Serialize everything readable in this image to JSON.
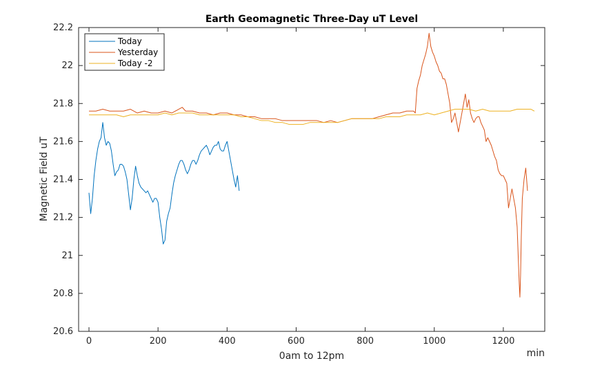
{
  "chart_data": {
    "type": "line",
    "title": "Earth Geomagnetic Three-Day uT Level",
    "xlabel": "0am to 12pm",
    "xunit": "min",
    "ylabel": "Magnetic Field uT",
    "xlim": [
      -30,
      1320
    ],
    "ylim": [
      20.6,
      22.2
    ],
    "xticks": [
      0,
      200,
      400,
      600,
      800,
      1000,
      1200
    ],
    "yticks": [
      20.6,
      20.8,
      21,
      21.2,
      21.4,
      21.6,
      21.8,
      22,
      22.2
    ],
    "grid": false,
    "legend_position": "top-left",
    "series": [
      {
        "name": "Today",
        "color": "#0072BD",
        "x": [
          0,
          5,
          10,
          15,
          20,
          25,
          30,
          35,
          40,
          45,
          50,
          55,
          60,
          65,
          70,
          75,
          80,
          85,
          90,
          95,
          100,
          105,
          110,
          115,
          120,
          125,
          130,
          135,
          140,
          145,
          150,
          155,
          160,
          165,
          170,
          175,
          180,
          185,
          190,
          195,
          200,
          205,
          210,
          215,
          220,
          225,
          230,
          235,
          240,
          245,
          250,
          255,
          260,
          265,
          270,
          275,
          280,
          285,
          290,
          295,
          300,
          305,
          310,
          315,
          320,
          325,
          330,
          335,
          340,
          345,
          350,
          355,
          360,
          365,
          370,
          375,
          380,
          385,
          390,
          395,
          400,
          405,
          410,
          415,
          420,
          425,
          430,
          435
        ],
        "y": [
          21.33,
          21.22,
          21.3,
          21.42,
          21.5,
          21.56,
          21.6,
          21.62,
          21.7,
          21.62,
          21.58,
          21.6,
          21.59,
          21.55,
          21.48,
          21.42,
          21.44,
          21.45,
          21.48,
          21.48,
          21.47,
          21.44,
          21.4,
          21.32,
          21.24,
          21.3,
          21.4,
          21.47,
          21.42,
          21.38,
          21.36,
          21.35,
          21.34,
          21.33,
          21.34,
          21.32,
          21.3,
          21.28,
          21.3,
          21.3,
          21.28,
          21.2,
          21.14,
          21.06,
          21.08,
          21.18,
          21.22,
          21.25,
          21.32,
          21.38,
          21.42,
          21.45,
          21.48,
          21.5,
          21.5,
          21.48,
          21.45,
          21.43,
          21.45,
          21.48,
          21.5,
          21.5,
          21.48,
          21.5,
          21.53,
          21.55,
          21.56,
          21.57,
          21.58,
          21.56,
          21.53,
          21.55,
          21.57,
          21.58,
          21.58,
          21.6,
          21.56,
          21.55,
          21.55,
          21.58,
          21.6,
          21.55,
          21.5,
          21.45,
          21.4,
          21.36,
          21.42,
          21.34
        ]
      },
      {
        "name": "Yesterday",
        "color": "#D95319",
        "x": [
          0,
          20,
          40,
          60,
          80,
          100,
          120,
          140,
          160,
          180,
          200,
          220,
          240,
          260,
          270,
          280,
          300,
          320,
          340,
          360,
          380,
          400,
          420,
          440,
          460,
          480,
          500,
          520,
          540,
          560,
          580,
          600,
          620,
          640,
          660,
          680,
          700,
          720,
          740,
          760,
          780,
          800,
          820,
          840,
          860,
          880,
          900,
          920,
          940,
          945,
          950,
          955,
          960,
          965,
          970,
          975,
          980,
          985,
          990,
          995,
          1000,
          1005,
          1010,
          1015,
          1020,
          1025,
          1030,
          1035,
          1040,
          1045,
          1050,
          1055,
          1060,
          1065,
          1070,
          1075,
          1080,
          1085,
          1090,
          1095,
          1100,
          1105,
          1110,
          1115,
          1120,
          1125,
          1130,
          1135,
          1140,
          1145,
          1150,
          1155,
          1160,
          1165,
          1170,
          1175,
          1180,
          1185,
          1190,
          1195,
          1200,
          1205,
          1210,
          1215,
          1220,
          1225,
          1230,
          1235,
          1240,
          1243,
          1246,
          1248,
          1250,
          1252,
          1255,
          1260,
          1265,
          1270
        ],
        "y": [
          21.76,
          21.76,
          21.77,
          21.76,
          21.76,
          21.76,
          21.77,
          21.75,
          21.76,
          21.75,
          21.75,
          21.76,
          21.75,
          21.77,
          21.78,
          21.76,
          21.76,
          21.75,
          21.75,
          21.74,
          21.75,
          21.75,
          21.74,
          21.74,
          21.73,
          21.73,
          21.72,
          21.72,
          21.72,
          21.71,
          21.71,
          21.71,
          21.71,
          21.71,
          21.71,
          21.7,
          21.71,
          21.7,
          21.71,
          21.72,
          21.72,
          21.72,
          21.72,
          21.73,
          21.74,
          21.75,
          21.75,
          21.76,
          21.76,
          21.75,
          21.88,
          21.92,
          21.95,
          22.0,
          22.03,
          22.06,
          22.1,
          22.17,
          22.1,
          22.07,
          22.05,
          22.02,
          22.0,
          21.97,
          21.96,
          21.93,
          21.93,
          21.9,
          21.85,
          21.8,
          21.7,
          21.72,
          21.75,
          21.7,
          21.65,
          21.7,
          21.75,
          21.8,
          21.85,
          21.78,
          21.82,
          21.75,
          21.72,
          21.7,
          21.72,
          21.73,
          21.73,
          21.7,
          21.68,
          21.66,
          21.6,
          21.62,
          21.6,
          21.58,
          21.55,
          21.52,
          21.5,
          21.45,
          21.43,
          21.42,
          21.42,
          21.4,
          21.38,
          21.25,
          21.3,
          21.35,
          21.3,
          21.25,
          21.15,
          21.0,
          20.85,
          20.78,
          20.9,
          21.1,
          21.3,
          21.4,
          21.46,
          21.34
        ]
      },
      {
        "name": "Today -2",
        "color": "#EDB120",
        "x": [
          0,
          20,
          40,
          60,
          80,
          100,
          120,
          140,
          160,
          180,
          200,
          220,
          240,
          260,
          280,
          300,
          320,
          340,
          360,
          380,
          400,
          420,
          440,
          460,
          480,
          500,
          520,
          540,
          560,
          580,
          600,
          620,
          640,
          660,
          680,
          700,
          720,
          740,
          760,
          780,
          800,
          820,
          840,
          860,
          880,
          900,
          920,
          940,
          960,
          980,
          1000,
          1020,
          1040,
          1060,
          1080,
          1100,
          1120,
          1140,
          1160,
          1180,
          1200,
          1220,
          1240,
          1260,
          1280,
          1290
        ],
        "y": [
          21.74,
          21.74,
          21.74,
          21.74,
          21.74,
          21.73,
          21.74,
          21.74,
          21.74,
          21.74,
          21.74,
          21.75,
          21.74,
          21.75,
          21.75,
          21.75,
          21.74,
          21.74,
          21.74,
          21.74,
          21.74,
          21.74,
          21.73,
          21.73,
          21.72,
          21.71,
          21.71,
          21.7,
          21.7,
          21.69,
          21.69,
          21.69,
          21.7,
          21.7,
          21.7,
          21.7,
          21.7,
          21.71,
          21.72,
          21.72,
          21.72,
          21.72,
          21.72,
          21.73,
          21.73,
          21.73,
          21.74,
          21.74,
          21.74,
          21.75,
          21.74,
          21.75,
          21.76,
          21.77,
          21.77,
          21.77,
          21.76,
          21.77,
          21.76,
          21.76,
          21.76,
          21.76,
          21.77,
          21.77,
          21.77,
          21.76
        ]
      }
    ]
  }
}
